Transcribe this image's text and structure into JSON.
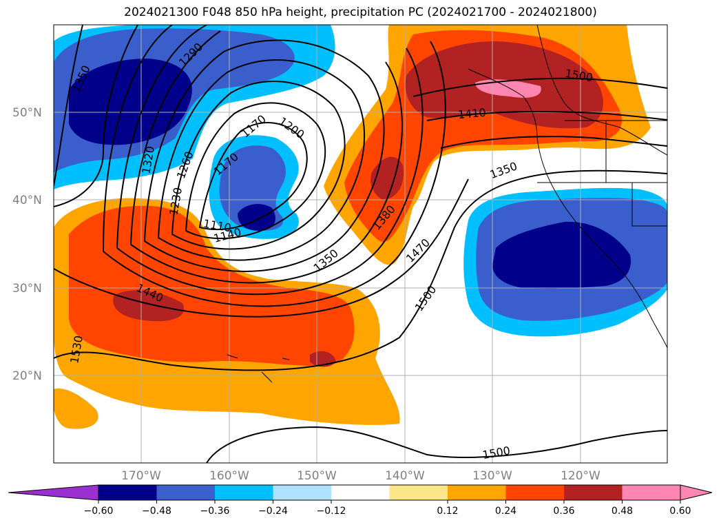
{
  "title": "2024021300 F048 850 hPa height, precipitation PC (2024021700 - 2024021800)",
  "map": {
    "lat_labels": [
      "50°N",
      "40°N",
      "30°N",
      "20°N"
    ],
    "lon_labels": [
      "170°W",
      "160°W",
      "150°W",
      "140°W",
      "130°W",
      "120°W"
    ],
    "contour_labels": [
      "1350",
      "1290",
      "1170",
      "1200",
      "1320",
      "1260",
      "1170",
      "1230",
      "1110",
      "1140",
      "1350",
      "1380",
      "1440",
      "1530",
      "1470",
      "1500",
      "1410",
      "1350",
      "1500",
      "1500"
    ]
  },
  "colorbar": {
    "colors": [
      "#9b30d0",
      "#00008b",
      "#3a5fcd",
      "#00bfff",
      "#b0e2ff",
      "#ffffff",
      "#fde68a",
      "#ffa500",
      "#ff4500",
      "#b22222",
      "#ff86b0",
      "#ff86b0"
    ],
    "ticks": [
      "−0.60",
      "−0.48",
      "−0.36",
      "−0.24",
      "−0.12",
      "0.12",
      "0.24",
      "0.36",
      "0.48",
      "0.60"
    ]
  }
}
